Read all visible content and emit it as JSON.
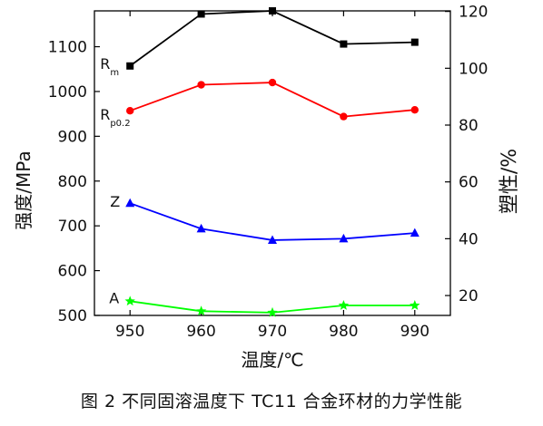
{
  "chart_data": {
    "type": "line",
    "caption": "图 2  不同固溶温度下 TC11 合金环材的力学性能",
    "xlabel": "温度/℃",
    "ylabel_left": "强度/MPa",
    "ylabel_right": "塑性/%",
    "x": [
      950,
      960,
      970,
      980,
      990
    ],
    "xlim": [
      945,
      995
    ],
    "x_ticks": [
      950,
      960,
      970,
      980,
      990
    ],
    "ylim_left": [
      500,
      1180
    ],
    "y_ticks_left": [
      500,
      600,
      700,
      800,
      900,
      1000,
      1100
    ],
    "ylim_right": [
      13.0,
      120.2
    ],
    "y_ticks_right": [
      20,
      40,
      60,
      80,
      100,
      120
    ],
    "grid": false,
    "legend": "none",
    "series": [
      {
        "name": "R_m",
        "label_main": "R",
        "label_sub": "m",
        "axis": "left",
        "color": "#000000",
        "marker": "square",
        "values": [
          1057,
          1173,
          1180,
          1106,
          1110
        ]
      },
      {
        "name": "R_p0.2",
        "label_main": "R",
        "label_sub": "p0.2",
        "axis": "left",
        "color": "#ff0000",
        "marker": "circle",
        "values": [
          957,
          1015,
          1020,
          944,
          959
        ]
      },
      {
        "name": "Z",
        "label_main": "Z",
        "label_sub": "",
        "axis": "right",
        "color": "#0000ff",
        "marker": "triangle",
        "values": [
          52.5,
          43.5,
          39.5,
          40.0,
          42.0
        ]
      },
      {
        "name": "A",
        "label_main": "A",
        "label_sub": "",
        "axis": "right",
        "color": "#00ff00",
        "marker": "star",
        "values": [
          18.0,
          14.5,
          14.0,
          16.5,
          16.5
        ]
      }
    ]
  }
}
